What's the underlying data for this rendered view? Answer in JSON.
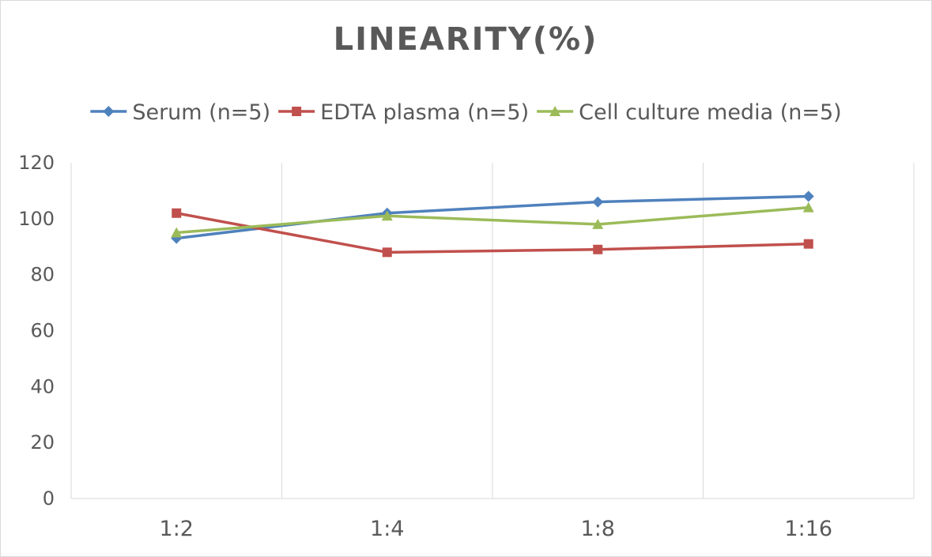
{
  "chart_data": {
    "type": "line",
    "title": "LINEARITY(%)",
    "categories": [
      "1:2",
      "1:4",
      "1:8",
      "1:16"
    ],
    "series": [
      {
        "name": "Serum (n=5)",
        "color": "#4F81BD",
        "marker": "diamond",
        "values": [
          93,
          102,
          106,
          108
        ]
      },
      {
        "name": "EDTA plasma (n=5)",
        "color": "#C0504D",
        "marker": "square",
        "values": [
          102,
          88,
          89,
          91
        ]
      },
      {
        "name": "Cell culture media (n=5)",
        "color": "#9BBB59",
        "marker": "triangle",
        "values": [
          95,
          101,
          98,
          104
        ]
      }
    ],
    "ylim": [
      0,
      120
    ],
    "yticks": [
      0,
      20,
      40,
      60,
      80,
      100,
      120
    ],
    "grid": "vertical",
    "legend": "top"
  }
}
